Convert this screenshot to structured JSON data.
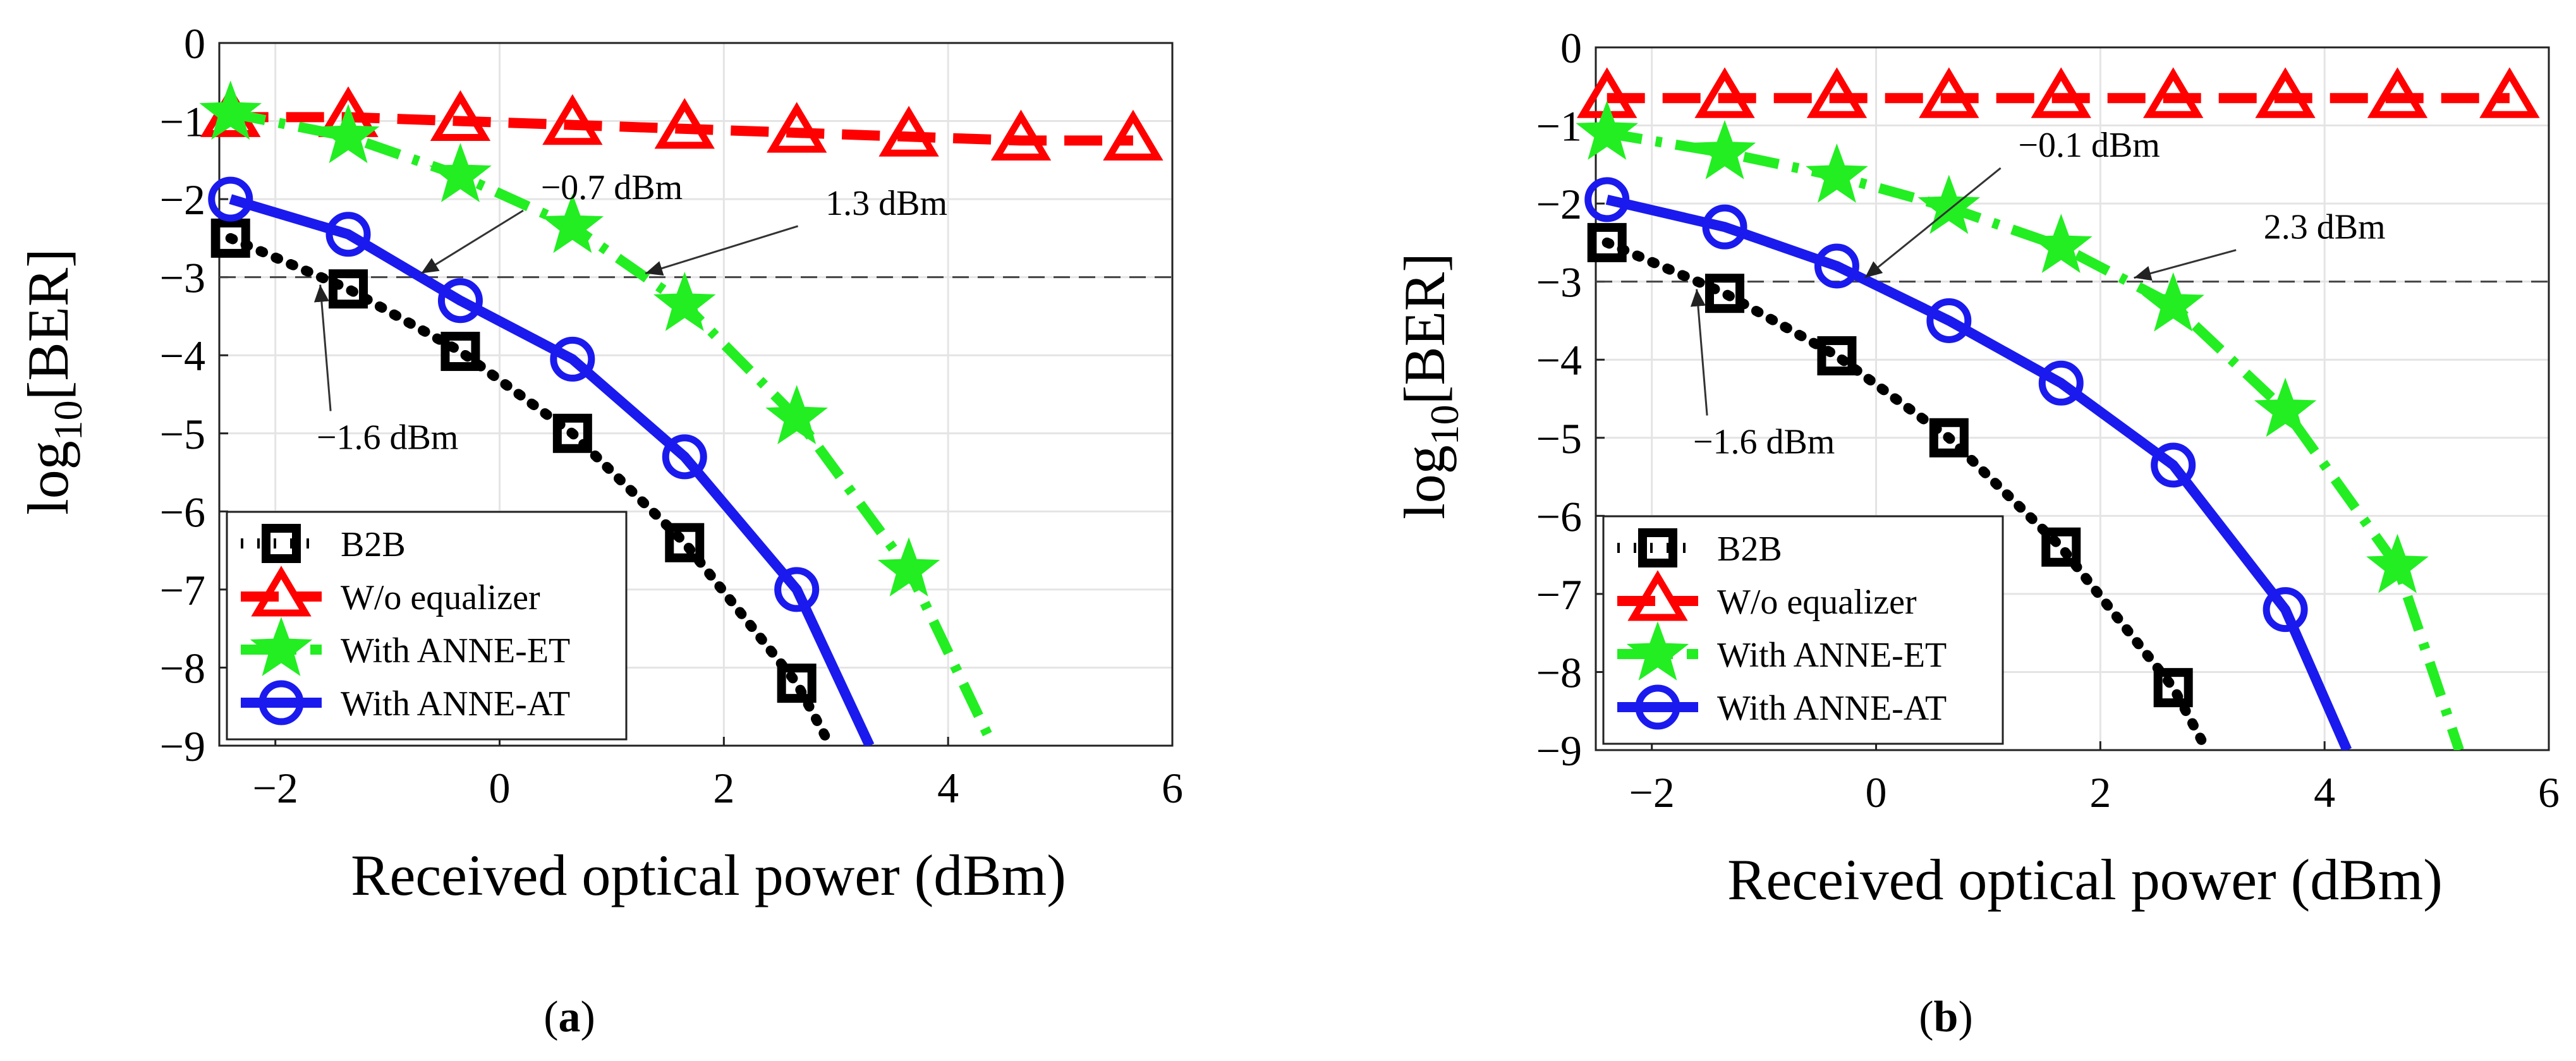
{
  "chart_data": [
    {
      "type": "line",
      "panel": "a",
      "caption_open": "(",
      "caption_label": "a",
      "caption_close": ")",
      "xlabel": "Received optical power (dBm)",
      "ylabel": "log10[BER]",
      "ylabel_main": "log",
      "ylabel_sub": "10",
      "ylabel_rest": "[BER]",
      "xlim": [
        -2.5,
        6
      ],
      "ylim": [
        -9,
        0
      ],
      "xticks": [
        -2,
        0,
        2,
        4,
        6
      ],
      "yticks": [
        0,
        -1,
        -2,
        -3,
        -4,
        -5,
        -6,
        -7,
        -8,
        -9
      ],
      "xtick_labels": [
        "−2",
        "0",
        "2",
        "4",
        "6"
      ],
      "ytick_labels": [
        "0",
        "−1",
        "−2",
        "−3",
        "−4",
        "−5",
        "−6",
        "−7",
        "−8",
        "−9"
      ],
      "grid": true,
      "threshold": -3,
      "series": [
        {
          "name": "B2B",
          "color": "#000000",
          "marker": "square",
          "dash": "dot",
          "x": [
            -2.4,
            -1.35,
            -0.35,
            0.65,
            1.65,
            2.65
          ],
          "y": [
            -2.5,
            -3.15,
            -3.95,
            -5.0,
            -6.4,
            -8.2
          ],
          "curve_x": [
            -2.4,
            -1.35,
            -0.35,
            0.65,
            1.65,
            2.65,
            2.95
          ],
          "curve_y": [
            -2.5,
            -3.15,
            -3.95,
            -5.0,
            -6.4,
            -8.2,
            -9.0
          ]
        },
        {
          "name": "W/o equalizer",
          "color": "#ff0000",
          "marker": "triangle",
          "dash": "dash",
          "x": [
            -2.4,
            -1.35,
            -0.35,
            0.65,
            1.65,
            2.65,
            3.65,
            4.65,
            5.65
          ],
          "y": [
            -0.95,
            -0.95,
            -1.0,
            -1.05,
            -1.1,
            -1.15,
            -1.2,
            -1.25,
            -1.25
          ],
          "curve_x": [
            -2.4,
            -1.35,
            -0.35,
            0.65,
            1.65,
            2.65,
            3.65,
            4.65,
            5.65
          ],
          "curve_y": [
            -0.95,
            -0.95,
            -1.0,
            -1.05,
            -1.1,
            -1.15,
            -1.2,
            -1.25,
            -1.25
          ]
        },
        {
          "name": "With ANNE-ET",
          "color": "#22ee22",
          "marker": "star",
          "dash": "dashdot",
          "x": [
            -2.4,
            -1.35,
            -0.35,
            0.65,
            1.65,
            2.65,
            3.65
          ],
          "y": [
            -0.9,
            -1.2,
            -1.7,
            -2.35,
            -3.35,
            -4.8,
            -6.75
          ],
          "curve_x": [
            -2.4,
            -1.35,
            -0.35,
            0.65,
            1.65,
            2.65,
            3.65,
            4.4
          ],
          "curve_y": [
            -0.9,
            -1.2,
            -1.7,
            -2.35,
            -3.35,
            -4.8,
            -6.75,
            -9.0
          ]
        },
        {
          "name": "With ANNE-AT",
          "color": "#1a1aee",
          "marker": "circle",
          "dash": "solid",
          "x": [
            -2.4,
            -1.35,
            -0.35,
            0.65,
            1.65,
            2.65
          ],
          "y": [
            -2.0,
            -2.45,
            -3.3,
            -4.05,
            -5.3,
            -7.0
          ],
          "curve_x": [
            -2.4,
            -1.35,
            -0.35,
            0.65,
            1.65,
            2.65,
            3.3
          ],
          "curve_y": [
            -2.0,
            -2.45,
            -3.3,
            -4.05,
            -5.3,
            -7.0,
            -9.0
          ]
        }
      ],
      "annotations": [
        {
          "text": "−0.7 dBm",
          "x": -0.7,
          "y": -3,
          "label_x": 1.0,
          "label_y": -2.0
        },
        {
          "text": "1.3 dBm",
          "x": 1.3,
          "y": -3,
          "label_x": 3.45,
          "label_y": -2.2
        },
        {
          "text": "−1.6 dBm",
          "x": -1.6,
          "y": -3,
          "label_x": -1.0,
          "label_y": -5.2
        }
      ],
      "legend": {
        "position": "bottom-left"
      }
    },
    {
      "type": "line",
      "panel": "b",
      "caption_open": "(",
      "caption_label": "b",
      "caption_close": ")",
      "xlabel": "Received optical power (dBm)",
      "ylabel": "log10[BER]",
      "ylabel_main": "log",
      "ylabel_sub": "10",
      "ylabel_rest": "[BER]",
      "xlim": [
        -2.5,
        6
      ],
      "ylim": [
        -9,
        0
      ],
      "xticks": [
        -2,
        0,
        2,
        4,
        6
      ],
      "yticks": [
        0,
        -1,
        -2,
        -3,
        -4,
        -5,
        -6,
        -7,
        -8,
        -9
      ],
      "xtick_labels": [
        "−2",
        "0",
        "2",
        "4",
        "6"
      ],
      "ytick_labels": [
        "0",
        "−1",
        "−2",
        "−3",
        "−4",
        "−5",
        "−6",
        "−7",
        "−8",
        "−9"
      ],
      "grid": true,
      "threshold": -3,
      "series": [
        {
          "name": "B2B",
          "color": "#000000",
          "marker": "square",
          "dash": "dot",
          "x": [
            -2.4,
            -1.35,
            -0.35,
            0.65,
            1.65,
            2.65
          ],
          "y": [
            -2.5,
            -3.15,
            -3.95,
            -5.0,
            -6.4,
            -8.2
          ],
          "curve_x": [
            -2.4,
            -1.35,
            -0.35,
            0.65,
            1.65,
            2.65,
            2.95
          ],
          "curve_y": [
            -2.5,
            -3.15,
            -3.95,
            -5.0,
            -6.4,
            -8.2,
            -9.0
          ]
        },
        {
          "name": "W/o equalizer",
          "color": "#ff0000",
          "marker": "triangle",
          "dash": "dash",
          "x": [
            -2.4,
            -1.35,
            -0.35,
            0.65,
            1.65,
            2.65,
            3.65,
            4.65,
            5.65
          ],
          "y": [
            -0.65,
            -0.65,
            -0.65,
            -0.65,
            -0.65,
            -0.65,
            -0.65,
            -0.65,
            -0.65
          ],
          "curve_x": [
            -2.4,
            -1.35,
            -0.35,
            0.65,
            1.65,
            2.65,
            3.65,
            4.65,
            5.65
          ],
          "curve_y": [
            -0.65,
            -0.65,
            -0.65,
            -0.65,
            -0.65,
            -0.65,
            -0.65,
            -0.65,
            -0.65
          ]
        },
        {
          "name": "With ANNE-ET",
          "color": "#22ee22",
          "marker": "star",
          "dash": "dashdot",
          "x": [
            -2.4,
            -1.35,
            -0.35,
            0.65,
            1.65,
            2.65,
            3.65,
            4.65
          ],
          "y": [
            -1.1,
            -1.35,
            -1.65,
            -2.05,
            -2.55,
            -3.3,
            -4.65,
            -6.65
          ],
          "curve_x": [
            -2.4,
            -1.35,
            -0.35,
            0.65,
            1.65,
            2.65,
            3.65,
            4.65,
            5.2
          ],
          "curve_y": [
            -1.1,
            -1.35,
            -1.65,
            -2.05,
            -2.55,
            -3.3,
            -4.65,
            -6.65,
            -9.0
          ]
        },
        {
          "name": "With ANNE-AT",
          "color": "#1a1aee",
          "marker": "circle",
          "dash": "solid",
          "x": [
            -2.4,
            -1.35,
            -0.35,
            0.65,
            1.65,
            2.65,
            3.65
          ],
          "y": [
            -1.95,
            -2.3,
            -2.8,
            -3.5,
            -4.3,
            -5.35,
            -7.2
          ],
          "curve_x": [
            -2.4,
            -1.35,
            -0.35,
            0.65,
            1.65,
            2.65,
            3.65,
            4.2
          ],
          "curve_y": [
            -1.95,
            -2.3,
            -2.8,
            -3.5,
            -4.3,
            -5.35,
            -7.2,
            -9.0
          ]
        }
      ],
      "annotations": [
        {
          "text": "−0.1 dBm",
          "x": -0.1,
          "y": -3,
          "label_x": 1.9,
          "label_y": -1.4
        },
        {
          "text": "2.3 dBm",
          "x": 2.3,
          "y": -3,
          "label_x": 4.0,
          "label_y": -2.45
        },
        {
          "text": "−1.6 dBm",
          "x": -1.6,
          "y": -3,
          "label_x": -1.0,
          "label_y": -5.2
        }
      ],
      "legend": {
        "position": "bottom-left"
      }
    }
  ]
}
